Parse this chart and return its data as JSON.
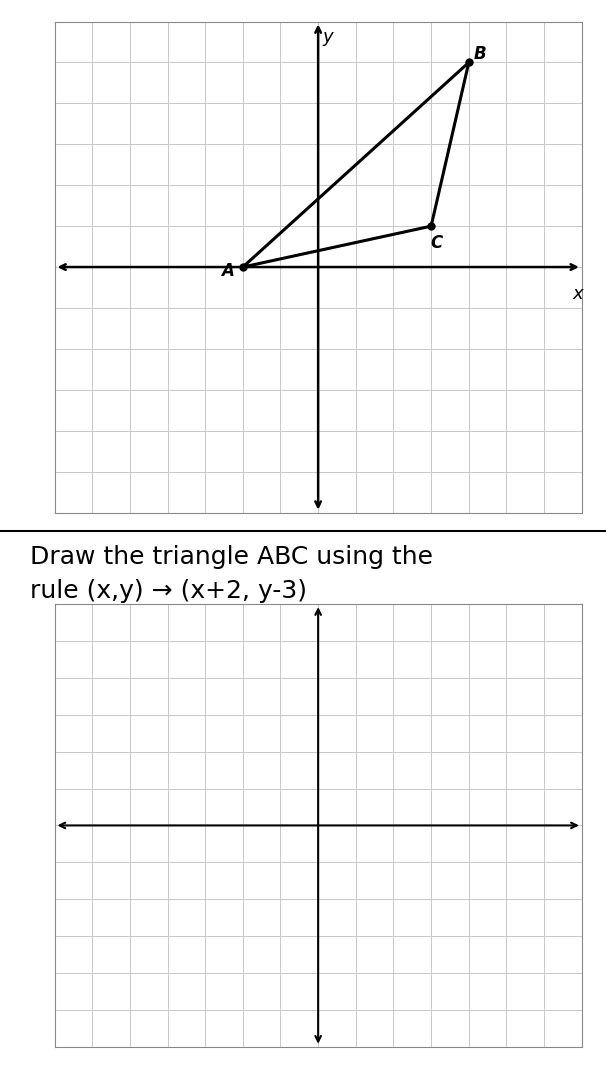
{
  "top_graph": {
    "A": [
      -2,
      0
    ],
    "B": [
      4,
      5
    ],
    "C": [
      3,
      1
    ],
    "xlim": [
      -7,
      7
    ],
    "ylim": [
      -6,
      6
    ],
    "grid_color": "#c8c8c8",
    "axis_color": "#000000",
    "triangle_color": "#000000",
    "point_color": "#000000",
    "label_A": "A",
    "label_B": "B",
    "label_C": "C",
    "xlabel": "x",
    "ylabel": "y"
  },
  "instruction_text_line1": "Draw the triangle ABC using the",
  "instruction_text_line2": "rule (x,y) → (x+2, y-3)",
  "bottom_graph": {
    "xlim": [
      -7,
      7
    ],
    "ylim": [
      -6,
      6
    ],
    "grid_color": "#c8c8c8",
    "axis_color": "#000000"
  },
  "bg_color": "#ffffff",
  "text_color": "#000000",
  "instruction_fontsize": 18,
  "label_fontsize": 12,
  "axis_label_fontsize": 13
}
